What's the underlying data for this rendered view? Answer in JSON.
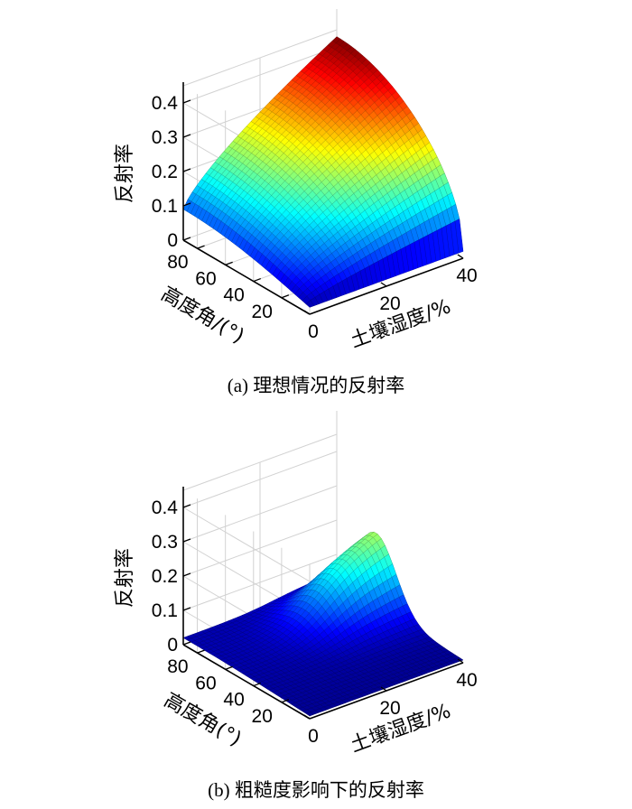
{
  "chart_data": [
    {
      "type": "surface",
      "caption": "(a) 理想情况的反射率",
      "zlabel": "反射率",
      "ylabel": "高度角/(°)",
      "xlabel": "土壤湿度/%",
      "x_ticks": [
        "0",
        "20",
        "40"
      ],
      "y_ticks": [
        "80",
        "60",
        "40",
        "20"
      ],
      "z_ticks": [
        "0",
        "0.1",
        "0.2",
        "0.3",
        "0.4"
      ],
      "xlim": [
        0,
        40
      ],
      "ylim": [
        0,
        90
      ],
      "zlim": [
        0,
        0.45
      ],
      "grid": true,
      "colormap": "jet",
      "model": "ideal",
      "corner_values": {
        "x0_y90": 0.09,
        "x0_y0": 0.02,
        "x40_y0": 0.02,
        "x40_y90": 0.43
      }
    },
    {
      "type": "surface",
      "caption": "(b) 粗糙度影响下的反射率",
      "zlabel": "反射率",
      "ylabel": "高度角(°)",
      "xlabel": "土壤湿度/%",
      "x_ticks": [
        "0",
        "20",
        "40"
      ],
      "y_ticks": [
        "80",
        "60",
        "40",
        "20"
      ],
      "z_ticks": [
        "0",
        "0.1",
        "0.2",
        "0.3",
        "0.4"
      ],
      "xlim": [
        0,
        40
      ],
      "ylim": [
        0,
        90
      ],
      "zlim": [
        0,
        0.45
      ],
      "grid": true,
      "colormap": "jet",
      "model": "rough",
      "peak_value": 0.23
    }
  ]
}
